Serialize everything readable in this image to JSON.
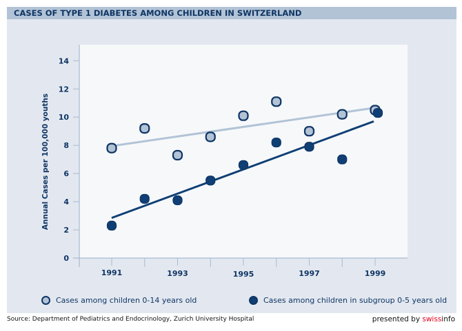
{
  "header": {
    "title": "CASES OF TYPE 1 DIABETES AMONG CHILDREN IN SWITZERLAND"
  },
  "colors": {
    "title_bar": "#b2c3d6",
    "panel": "#e3e8f0",
    "plot_bg": "#f6f8fa",
    "series_light": "#b2c3d6",
    "series_dark": "#0f3f74",
    "outline": "#0f3564",
    "brand": "#e2001a"
  },
  "chart_data": {
    "type": "scatter",
    "title": "CASES OF TYPE 1 DIABETES AMONG CHILDREN IN SWITZERLAND",
    "xlabel": "",
    "ylabel": "Annual Cases per 100,000 youths",
    "x": [
      1991,
      1992,
      1993,
      1994,
      1995,
      1996,
      1997,
      1998,
      1999
    ],
    "xlim": [
      1990.1,
      1999.9
    ],
    "ylim": [
      0,
      15
    ],
    "yticks": [
      0,
      2,
      4,
      6,
      8,
      10,
      12,
      14
    ],
    "xticks_labeled": [
      1991,
      1993,
      1995,
      1997,
      1999
    ],
    "xticks_minor": [
      1990,
      1992,
      1994,
      1996,
      1998
    ],
    "grid": false,
    "legend_position": "bottom",
    "series": [
      {
        "name": "Cases among children 0-14 years old",
        "style": "light",
        "values": [
          7.8,
          9.2,
          7.3,
          8.6,
          10.1,
          11.1,
          9.0,
          10.2,
          10.5
        ],
        "trend": {
          "x": [
            1991,
            1999
          ],
          "y": [
            7.95,
            10.65
          ]
        }
      },
      {
        "name": "Cases among children in subgroup 0-5 years old",
        "style": "dark",
        "values": [
          2.3,
          4.2,
          4.1,
          5.5,
          6.6,
          8.2,
          7.9,
          7.0,
          10.3
        ],
        "trend": {
          "x": [
            1991,
            1999
          ],
          "y": [
            2.85,
            9.7
          ]
        }
      }
    ]
  },
  "legend": {
    "items": [
      {
        "label": "Cases among children 0-14 years old"
      },
      {
        "label": "Cases among children in subgroup 0-5 years old"
      }
    ]
  },
  "footer": {
    "source": "Source: Department of Pediatrics and Endocrinology, Zurich University Hospital",
    "presented_by": "presented by ",
    "brand_red": "swiss",
    "brand_rest": "info"
  }
}
